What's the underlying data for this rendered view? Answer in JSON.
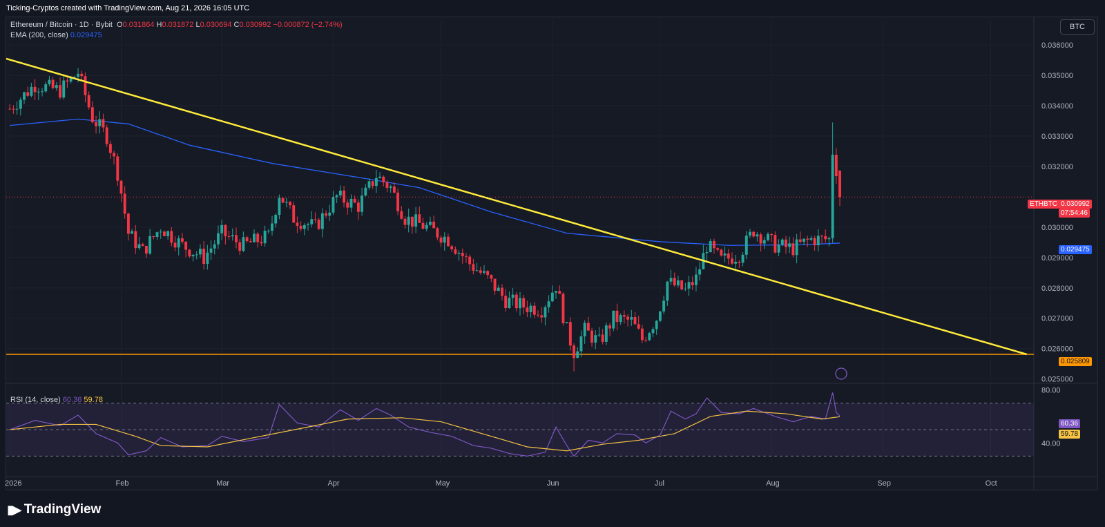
{
  "header": {
    "title": "Ticking-Cryptos created with TradingView.com, Aug 21, 2026 16:05 UTC"
  },
  "legend": {
    "symbol": "Ethereum / Bitcoin · 1D · Bybit",
    "o_label": "O",
    "o_value": "0.031864",
    "h_label": "H",
    "h_value": "0.031872",
    "l_label": "L",
    "l_value": "0.030694",
    "c_label": "C",
    "c_value": "0.030992",
    "change": "−0.000872 (−2.74%)",
    "ema_label": "EMA (200, close)",
    "ema_value": "0.029475",
    "rsi_label": "RSI (14, close)",
    "rsi_value": "60.36",
    "rsi_ma_value": "59.78"
  },
  "toolbar": {
    "currency_button": "BTC"
  },
  "price_badges": {
    "symbol": "ETHBTC",
    "last": "0.030992",
    "countdown": "07:54:46",
    "ema": "0.029475",
    "support": "0.025809",
    "rsi": "60.36",
    "rsi_ma": "59.78"
  },
  "footer": {
    "brand": "TradingView"
  },
  "colors": {
    "up": "#26a69a",
    "down": "#f23645",
    "ema": "#2962ff",
    "trendline": "#ffeb3b",
    "support": "#ff9800",
    "rsi": "#7e57c2",
    "rsi_ma": "#f6c343"
  },
  "chart_data": [
    {
      "type": "candlestick",
      "title": "",
      "x_ticks": [
        "2026",
        "Feb",
        "Mar",
        "Apr",
        "May",
        "Jun",
        "Jul",
        "Aug",
        "Sep",
        "Oct"
      ],
      "y_ticks": [
        "0.036000",
        "0.035000",
        "0.034000",
        "0.033000",
        "0.032000",
        "0.030000",
        "0.029000",
        "0.028000",
        "0.027000",
        "0.026000",
        "0.025000"
      ],
      "ylim": [
        0.0249,
        0.0368
      ],
      "xlim": [
        "2025-12-31",
        "2026-10-13"
      ],
      "close_path": [
        [
          "2026-01-01",
          0.0339
        ],
        [
          "2026-01-08",
          0.0347
        ],
        [
          "2026-01-15",
          0.0345
        ],
        [
          "2026-01-20",
          0.0351
        ],
        [
          "2026-01-24",
          0.0336
        ],
        [
          "2026-01-28",
          0.033
        ],
        [
          "2026-01-31",
          0.0318
        ],
        [
          "2026-02-03",
          0.0298
        ],
        [
          "2026-02-07",
          0.0292
        ],
        [
          "2026-02-12",
          0.03
        ],
        [
          "2026-02-18",
          0.0294
        ],
        [
          "2026-02-24",
          0.029
        ],
        [
          "2026-03-01",
          0.0298
        ],
        [
          "2026-03-07",
          0.0294
        ],
        [
          "2026-03-14",
          0.0297
        ],
        [
          "2026-03-17",
          0.0311
        ],
        [
          "2026-03-21",
          0.0303
        ],
        [
          "2026-03-27",
          0.03
        ],
        [
          "2026-04-02",
          0.031
        ],
        [
          "2026-04-08",
          0.0307
        ],
        [
          "2026-04-13",
          0.0317
        ],
        [
          "2026-04-17",
          0.0313
        ],
        [
          "2026-04-21",
          0.0303
        ],
        [
          "2026-04-27",
          0.03
        ],
        [
          "2026-05-03",
          0.0296
        ],
        [
          "2026-05-09",
          0.0288
        ],
        [
          "2026-05-14",
          0.0283
        ],
        [
          "2026-05-19",
          0.0276
        ],
        [
          "2026-05-24",
          0.0274
        ],
        [
          "2026-05-29",
          0.0273
        ],
        [
          "2026-06-02",
          0.0281
        ],
        [
          "2026-06-05",
          0.0266
        ],
        [
          "2026-06-07",
          0.0259
        ],
        [
          "2026-06-10",
          0.0266
        ],
        [
          "2026-06-14",
          0.0262
        ],
        [
          "2026-06-18",
          0.027
        ],
        [
          "2026-06-23",
          0.0269
        ],
        [
          "2026-06-26",
          0.0263
        ],
        [
          "2026-06-30",
          0.027
        ],
        [
          "2026-07-03",
          0.0282
        ],
        [
          "2026-07-08",
          0.0279
        ],
        [
          "2026-07-11",
          0.0283
        ],
        [
          "2026-07-14",
          0.0294
        ],
        [
          "2026-07-18",
          0.0289
        ],
        [
          "2026-07-23",
          0.0291
        ],
        [
          "2026-07-27",
          0.0299
        ],
        [
          "2026-08-02",
          0.0294
        ],
        [
          "2026-08-07",
          0.0293
        ],
        [
          "2026-08-12",
          0.0296
        ],
        [
          "2026-08-17",
          0.0296
        ],
        [
          "2026-08-18",
          0.0325
        ],
        [
          "2026-08-19",
          0.0319
        ],
        [
          "2026-08-20",
          0.031
        ]
      ],
      "last_candle": {
        "date": "2026-08-20",
        "open": 0.031864,
        "high": 0.031872,
        "low": 0.030694,
        "close": 0.030992
      },
      "series": [
        {
          "name": "EMA (200, close)",
          "points": [
            [
              "2026-01-01",
              0.03335
            ],
            [
              "2026-01-20",
              0.03356
            ],
            [
              "2026-02-03",
              0.0334
            ],
            [
              "2026-02-20",
              0.0327
            ],
            [
              "2026-03-15",
              0.0321
            ],
            [
              "2026-04-10",
              0.0316
            ],
            [
              "2026-04-25",
              0.0313
            ],
            [
              "2026-05-15",
              0.0305
            ],
            [
              "2026-06-05",
              0.0298
            ],
            [
              "2026-07-01",
              0.02952
            ],
            [
              "2026-07-20",
              0.0294
            ],
            [
              "2026-08-10",
              0.02942
            ],
            [
              "2026-08-20",
              0.029475
            ]
          ]
        },
        {
          "name": "trendline",
          "points": [
            [
              "2025-12-31",
              0.03555
            ],
            [
              "2026-10-11",
              0.02581
            ]
          ]
        },
        {
          "name": "support",
          "y": 0.025809
        }
      ]
    },
    {
      "type": "line",
      "title": "",
      "y_ticks": [
        "80.00",
        "40.00"
      ],
      "ylim": [
        25,
        85
      ],
      "bands": [
        70,
        50,
        30
      ],
      "series": [
        {
          "name": "RSI (14, close)",
          "points": [
            [
              "2026-01-01",
              50
            ],
            [
              "2026-01-08",
              57
            ],
            [
              "2026-01-15",
              53
            ],
            [
              "2026-01-20",
              61
            ],
            [
              "2026-01-25",
              47
            ],
            [
              "2026-01-31",
              40
            ],
            [
              "2026-02-03",
              31
            ],
            [
              "2026-02-08",
              34
            ],
            [
              "2026-02-12",
              44
            ],
            [
              "2026-02-18",
              37
            ],
            [
              "2026-02-25",
              38
            ],
            [
              "2026-03-01",
              45
            ],
            [
              "2026-03-07",
              41
            ],
            [
              "2026-03-14",
              44
            ],
            [
              "2026-03-17",
              69
            ],
            [
              "2026-03-22",
              55
            ],
            [
              "2026-03-28",
              52
            ],
            [
              "2026-04-03",
              65
            ],
            [
              "2026-04-08",
              57
            ],
            [
              "2026-04-13",
              66
            ],
            [
              "2026-04-17",
              61
            ],
            [
              "2026-04-22",
              52
            ],
            [
              "2026-04-28",
              48
            ],
            [
              "2026-05-04",
              45
            ],
            [
              "2026-05-10",
              38
            ],
            [
              "2026-05-15",
              36
            ],
            [
              "2026-05-20",
              32
            ],
            [
              "2026-05-25",
              30
            ],
            [
              "2026-05-30",
              33
            ],
            [
              "2026-06-02",
              52
            ],
            [
              "2026-06-05",
              38
            ],
            [
              "2026-06-07",
              30
            ],
            [
              "2026-06-11",
              42
            ],
            [
              "2026-06-15",
              40
            ],
            [
              "2026-06-19",
              47
            ],
            [
              "2026-06-24",
              46
            ],
            [
              "2026-06-27",
              40
            ],
            [
              "2026-07-01",
              46
            ],
            [
              "2026-07-04",
              64
            ],
            [
              "2026-07-08",
              58
            ],
            [
              "2026-07-11",
              62
            ],
            [
              "2026-07-14",
              74
            ],
            [
              "2026-07-18",
              63
            ],
            [
              "2026-07-23",
              62
            ],
            [
              "2026-07-27",
              66
            ],
            [
              "2026-08-02",
              60
            ],
            [
              "2026-08-07",
              56
            ],
            [
              "2026-08-12",
              60
            ],
            [
              "2026-08-16",
              58
            ],
            [
              "2026-08-18",
              78
            ],
            [
              "2026-08-19",
              63
            ],
            [
              "2026-08-20",
              60.36
            ]
          ]
        },
        {
          "name": "RSI-based MA",
          "points": [
            [
              "2026-01-01",
              50
            ],
            [
              "2026-01-15",
              54
            ],
            [
              "2026-01-25",
              54
            ],
            [
              "2026-02-05",
              45
            ],
            [
              "2026-02-12",
              38
            ],
            [
              "2026-02-25",
              37
            ],
            [
              "2026-03-10",
              44
            ],
            [
              "2026-03-25",
              52
            ],
            [
              "2026-04-05",
              58
            ],
            [
              "2026-04-20",
              59
            ],
            [
              "2026-05-01",
              56
            ],
            [
              "2026-05-15",
              45
            ],
            [
              "2026-05-25",
              37
            ],
            [
              "2026-06-05",
              34
            ],
            [
              "2026-06-15",
              39
            ],
            [
              "2026-06-25",
              42
            ],
            [
              "2026-07-05",
              47
            ],
            [
              "2026-07-15",
              60
            ],
            [
              "2026-07-25",
              64
            ],
            [
              "2026-08-05",
              62
            ],
            [
              "2026-08-15",
              58
            ],
            [
              "2026-08-20",
              59.78
            ]
          ]
        }
      ]
    }
  ]
}
